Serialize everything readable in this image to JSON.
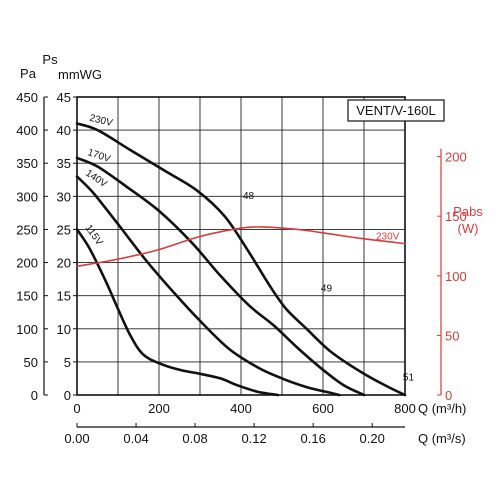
{
  "chart_data": {
    "type": "line",
    "title": "VENT/V-160L",
    "x_axis_primary": {
      "label": "Q (m³/h)",
      "range": [
        0,
        800
      ],
      "ticks": [
        0,
        200,
        400,
        600,
        800
      ]
    },
    "x_axis_secondary": {
      "label": "Q (m³/s)",
      "ticks": [
        "0.00",
        "0.04",
        "0.08",
        "0.12",
        "0.16",
        "0.20"
      ],
      "tick_values": [
        0.0,
        0.04,
        0.08,
        0.12,
        0.16,
        0.2
      ]
    },
    "y_axis_pa": {
      "unit": "Pa",
      "range": [
        0,
        450
      ],
      "ticks": [
        0,
        50,
        100,
        150,
        200,
        250,
        300,
        350,
        400,
        450
      ]
    },
    "y_axis_mmwg": {
      "label": "Ps",
      "unit": "mmWG",
      "range": [
        0,
        45
      ],
      "ticks": [
        0,
        5,
        10,
        15,
        20,
        25,
        30,
        35,
        40,
        45
      ]
    },
    "y_axis_power": {
      "label": "Pabs",
      "unit": "(W)",
      "range": [
        0,
        250
      ],
      "ticks": [
        0,
        50,
        100,
        150,
        200
      ]
    },
    "grid": true,
    "series": [
      {
        "name": "230V",
        "axis": "pa",
        "color": "#111111",
        "points": [
          [
            0,
            410
          ],
          [
            50,
            400
          ],
          [
            130,
            370
          ],
          [
            210,
            340
          ],
          [
            290,
            310
          ],
          [
            360,
            270
          ],
          [
            420,
            215
          ],
          [
            470,
            165
          ],
          [
            510,
            130
          ],
          [
            560,
            100
          ],
          [
            620,
            65
          ],
          [
            700,
            32
          ],
          [
            760,
            12
          ],
          [
            800,
            0
          ]
        ]
      },
      {
        "name": "170V",
        "axis": "pa",
        "color": "#111111",
        "points": [
          [
            0,
            358
          ],
          [
            50,
            345
          ],
          [
            120,
            315
          ],
          [
            200,
            278
          ],
          [
            280,
            230
          ],
          [
            350,
            180
          ],
          [
            420,
            135
          ],
          [
            480,
            105
          ],
          [
            540,
            70
          ],
          [
            600,
            38
          ],
          [
            650,
            15
          ],
          [
            700,
            0
          ]
        ]
      },
      {
        "name": "140V",
        "axis": "pa",
        "color": "#111111",
        "points": [
          [
            0,
            330
          ],
          [
            40,
            305
          ],
          [
            100,
            258
          ],
          [
            170,
            202
          ],
          [
            240,
            152
          ],
          [
            300,
            112
          ],
          [
            370,
            70
          ],
          [
            440,
            42
          ],
          [
            500,
            25
          ],
          [
            560,
            12
          ],
          [
            620,
            3
          ],
          [
            640,
            0
          ]
        ]
      },
      {
        "name": "115V",
        "axis": "pa",
        "color": "#111111",
        "points": [
          [
            0,
            250
          ],
          [
            30,
            222
          ],
          [
            70,
            172
          ],
          [
            100,
            130
          ],
          [
            130,
            90
          ],
          [
            160,
            62
          ],
          [
            200,
            48
          ],
          [
            250,
            38
          ],
          [
            300,
            32
          ],
          [
            350,
            25
          ],
          [
            390,
            15
          ],
          [
            440,
            5
          ],
          [
            490,
            0
          ]
        ]
      },
      {
        "name": "230V",
        "axis": "power",
        "color": "#d93a3a",
        "points": [
          [
            0,
            108
          ],
          [
            100,
            114
          ],
          [
            200,
            122
          ],
          [
            300,
            133
          ],
          [
            400,
            140
          ],
          [
            450,
            141
          ],
          [
            500,
            140
          ],
          [
            560,
            138
          ],
          [
            620,
            135
          ],
          [
            700,
            131
          ],
          [
            800,
            127
          ]
        ]
      }
    ],
    "annotations": [
      {
        "text": "48",
        "x": 400,
        "y": 290
      },
      {
        "text": "49",
        "x": 590,
        "y": 150
      },
      {
        "text": "51",
        "x": 790,
        "y": 16
      }
    ]
  }
}
